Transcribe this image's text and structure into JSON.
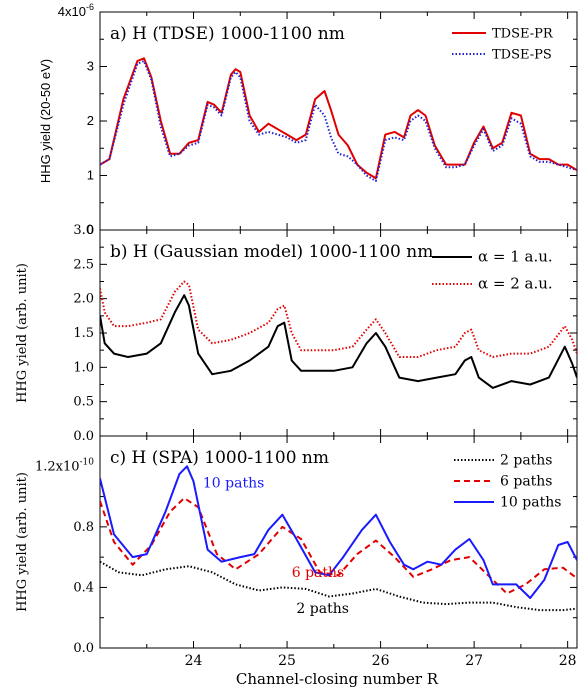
{
  "chart_data": [
    {
      "type": "line",
      "title": "a) H (TDSE)  1000-1100 nm",
      "ylabel": "HHG yield (20-50 eV)",
      "ylim": [
        0,
        4
      ],
      "xlim": [
        23,
        28.1
      ],
      "y_exponent_label": "4x10",
      "y_exponent_sup": "-6",
      "yticks": [
        {
          "v": 1,
          "label": "1"
        },
        {
          "v": 2,
          "label": "2"
        },
        {
          "v": 3,
          "label": "3"
        }
      ],
      "y_bottom_label": "0",
      "legend_position": "top-right",
      "series": [
        {
          "name": "TDSE-PR",
          "color": "#e00000",
          "dash": "solid",
          "x": [
            23.0,
            23.1,
            23.25,
            23.4,
            23.47,
            23.55,
            23.65,
            23.75,
            23.85,
            23.95,
            24.05,
            24.15,
            24.22,
            24.3,
            24.4,
            24.45,
            24.5,
            24.6,
            24.7,
            24.8,
            24.9,
            25.0,
            25.1,
            25.2,
            25.3,
            25.4,
            25.47,
            25.55,
            25.65,
            25.75,
            25.85,
            25.95,
            26.05,
            26.15,
            26.25,
            26.32,
            26.4,
            26.48,
            26.58,
            26.7,
            26.8,
            26.9,
            27.0,
            27.1,
            27.2,
            27.3,
            27.4,
            27.5,
            27.6,
            27.7,
            27.8,
            27.9,
            28.0,
            28.1
          ],
          "y": [
            1.2,
            1.3,
            2.4,
            3.1,
            3.15,
            2.8,
            2.0,
            1.4,
            1.4,
            1.6,
            1.65,
            2.35,
            2.3,
            2.15,
            2.85,
            2.95,
            2.9,
            2.1,
            1.8,
            1.95,
            1.85,
            1.75,
            1.65,
            1.75,
            2.4,
            2.55,
            2.2,
            1.75,
            1.55,
            1.2,
            1.05,
            0.95,
            1.75,
            1.8,
            1.7,
            2.1,
            2.2,
            2.1,
            1.55,
            1.2,
            1.2,
            1.2,
            1.6,
            1.9,
            1.5,
            1.6,
            2.15,
            2.1,
            1.4,
            1.3,
            1.3,
            1.2,
            1.2,
            1.1
          ]
        },
        {
          "name": "TDSE-PS",
          "color": "#2020d0",
          "dash": "dot",
          "x": [
            23.0,
            23.1,
            23.25,
            23.4,
            23.47,
            23.55,
            23.65,
            23.75,
            23.85,
            23.95,
            24.05,
            24.15,
            24.22,
            24.3,
            24.4,
            24.45,
            24.5,
            24.6,
            24.7,
            24.8,
            24.9,
            25.0,
            25.1,
            25.2,
            25.3,
            25.4,
            25.47,
            25.55,
            25.65,
            25.75,
            25.85,
            25.95,
            26.05,
            26.15,
            26.25,
            26.32,
            26.4,
            26.48,
            26.58,
            26.7,
            26.8,
            26.9,
            27.0,
            27.1,
            27.2,
            27.3,
            27.4,
            27.5,
            27.6,
            27.7,
            27.8,
            27.9,
            28.0,
            28.1
          ],
          "y": [
            1.2,
            1.3,
            2.3,
            3.05,
            3.1,
            2.75,
            1.9,
            1.35,
            1.4,
            1.55,
            1.6,
            2.3,
            2.25,
            2.1,
            2.8,
            2.9,
            2.8,
            2.0,
            1.75,
            1.8,
            1.75,
            1.7,
            1.6,
            1.65,
            2.3,
            2.1,
            1.7,
            1.4,
            1.35,
            1.2,
            1.0,
            0.9,
            1.65,
            1.7,
            1.65,
            2.0,
            2.1,
            2.0,
            1.5,
            1.15,
            1.15,
            1.2,
            1.55,
            1.85,
            1.45,
            1.55,
            2.05,
            1.95,
            1.35,
            1.25,
            1.25,
            1.2,
            1.15,
            1.1
          ]
        }
      ]
    },
    {
      "type": "line",
      "title": "b) H (Gaussian model) 1000-1100 nm",
      "ylabel": "HHG yield (arb. unit)",
      "ylim": [
        0,
        3
      ],
      "xlim": [
        23,
        28.1
      ],
      "yticks": [
        {
          "v": 0.5,
          "label": "0.5"
        },
        {
          "v": 1.0,
          "label": "1.0"
        },
        {
          "v": 1.5,
          "label": "1.5"
        },
        {
          "v": 2.0,
          "label": "2.0"
        },
        {
          "v": 2.5,
          "label": "2.5"
        }
      ],
      "y_top_label": "3.0",
      "y_bottom_label": "0.0",
      "legend_position": "top-right",
      "series": [
        {
          "name": "α = 1 a.u.",
          "color": "#000000",
          "dash": "solid",
          "x": [
            23.0,
            23.05,
            23.15,
            23.3,
            23.5,
            23.65,
            23.8,
            23.9,
            23.95,
            24.05,
            24.2,
            24.4,
            24.6,
            24.8,
            24.9,
            24.97,
            25.05,
            25.15,
            25.3,
            25.5,
            25.7,
            25.85,
            25.95,
            26.05,
            26.2,
            26.4,
            26.6,
            26.8,
            26.9,
            26.97,
            27.05,
            27.2,
            27.4,
            27.6,
            27.8,
            27.97,
            28.05,
            28.1
          ],
          "y": [
            1.75,
            1.35,
            1.2,
            1.15,
            1.2,
            1.35,
            1.8,
            2.05,
            1.9,
            1.2,
            0.9,
            0.95,
            1.1,
            1.3,
            1.6,
            1.65,
            1.1,
            0.95,
            0.95,
            0.95,
            1.0,
            1.35,
            1.5,
            1.3,
            0.85,
            0.8,
            0.85,
            0.9,
            1.1,
            1.15,
            0.85,
            0.7,
            0.8,
            0.75,
            0.85,
            1.3,
            1.05,
            0.85
          ]
        },
        {
          "name": "α = 2 a.u.",
          "color": "#e00000",
          "dash": "dot",
          "x": [
            23.0,
            23.05,
            23.15,
            23.3,
            23.5,
            23.65,
            23.8,
            23.9,
            23.95,
            24.05,
            24.2,
            24.4,
            24.6,
            24.8,
            24.9,
            24.97,
            25.05,
            25.15,
            25.3,
            25.5,
            25.7,
            25.85,
            25.95,
            26.05,
            26.2,
            26.4,
            26.6,
            26.8,
            26.9,
            26.97,
            27.05,
            27.2,
            27.4,
            27.6,
            27.8,
            27.97,
            28.05,
            28.1
          ],
          "y": [
            2.15,
            1.8,
            1.6,
            1.6,
            1.65,
            1.7,
            2.1,
            2.25,
            2.2,
            1.55,
            1.35,
            1.4,
            1.5,
            1.65,
            1.85,
            1.9,
            1.5,
            1.25,
            1.25,
            1.25,
            1.3,
            1.55,
            1.7,
            1.5,
            1.15,
            1.15,
            1.25,
            1.3,
            1.5,
            1.55,
            1.25,
            1.15,
            1.2,
            1.2,
            1.3,
            1.6,
            1.4,
            1.2
          ]
        }
      ]
    },
    {
      "type": "line",
      "title": "c) H (SPA) 1000-1100 nm",
      "ylabel": "HHG yield (arb. unit)",
      "xlabel": "Channel-closing number R",
      "ylim": [
        0,
        1.4
      ],
      "xlim": [
        23,
        28.1
      ],
      "y_exponent_label": "1.2x10",
      "y_exponent_sup": "-10",
      "yticks": [
        {
          "v": 0.4,
          "label": "0.4"
        },
        {
          "v": 0.8,
          "label": "0.8"
        }
      ],
      "y_bottom_label": "0.0",
      "xticks": [
        {
          "v": 24,
          "label": "24"
        },
        {
          "v": 25,
          "label": "25"
        },
        {
          "v": 26,
          "label": "26"
        },
        {
          "v": 27,
          "label": "27"
        },
        {
          "v": 28,
          "label": "28"
        }
      ],
      "legend_position": "top-right",
      "annotations": [
        {
          "text": "10 paths",
          "x": 24.1,
          "y": 1.06,
          "color": "#1a1aff"
        },
        {
          "text": "6 paths",
          "x": 25.05,
          "y": 0.47,
          "color": "#e00000"
        },
        {
          "text": "2 paths",
          "x": 25.1,
          "y": 0.23,
          "color": "#000000"
        }
      ],
      "series": [
        {
          "name": "2 paths",
          "color": "#000000",
          "dash": "dot",
          "x": [
            23.0,
            23.2,
            23.45,
            23.7,
            23.95,
            24.2,
            24.45,
            24.7,
            24.95,
            25.2,
            25.45,
            25.7,
            25.95,
            26.2,
            26.45,
            26.7,
            26.95,
            27.2,
            27.45,
            27.7,
            27.95,
            28.1
          ],
          "y": [
            0.57,
            0.5,
            0.48,
            0.52,
            0.54,
            0.5,
            0.42,
            0.38,
            0.4,
            0.39,
            0.34,
            0.36,
            0.39,
            0.34,
            0.3,
            0.29,
            0.3,
            0.3,
            0.27,
            0.25,
            0.25,
            0.26
          ]
        },
        {
          "name": "6 paths",
          "color": "#e00000",
          "dash": "dash",
          "x": [
            23.0,
            23.15,
            23.35,
            23.55,
            23.75,
            23.9,
            24.05,
            24.25,
            24.45,
            24.7,
            24.95,
            25.15,
            25.35,
            25.55,
            25.75,
            25.95,
            26.15,
            26.35,
            26.55,
            26.75,
            26.95,
            27.15,
            27.35,
            27.55,
            27.75,
            27.95,
            28.1
          ],
          "y": [
            0.97,
            0.7,
            0.55,
            0.68,
            0.9,
            0.99,
            0.93,
            0.62,
            0.52,
            0.62,
            0.8,
            0.72,
            0.5,
            0.48,
            0.62,
            0.71,
            0.6,
            0.47,
            0.52,
            0.58,
            0.6,
            0.48,
            0.36,
            0.42,
            0.52,
            0.53,
            0.46
          ]
        },
        {
          "name": "10 paths",
          "color": "#1a1aff",
          "dash": "solid",
          "x": [
            23.0,
            23.15,
            23.35,
            23.5,
            23.7,
            23.85,
            23.93,
            24.0,
            24.15,
            24.3,
            24.5,
            24.65,
            24.8,
            24.95,
            25.1,
            25.3,
            25.45,
            25.6,
            25.8,
            25.95,
            26.1,
            26.25,
            26.35,
            26.5,
            26.65,
            26.8,
            26.95,
            27.1,
            27.2,
            27.3,
            27.45,
            27.6,
            27.75,
            27.9,
            28.0,
            28.1
          ],
          "y": [
            1.12,
            0.75,
            0.6,
            0.62,
            0.9,
            1.15,
            1.2,
            1.1,
            0.65,
            0.57,
            0.6,
            0.62,
            0.78,
            0.88,
            0.72,
            0.5,
            0.48,
            0.6,
            0.78,
            0.88,
            0.7,
            0.55,
            0.52,
            0.57,
            0.55,
            0.65,
            0.72,
            0.58,
            0.42,
            0.42,
            0.42,
            0.33,
            0.45,
            0.68,
            0.7,
            0.58
          ]
        }
      ]
    }
  ]
}
